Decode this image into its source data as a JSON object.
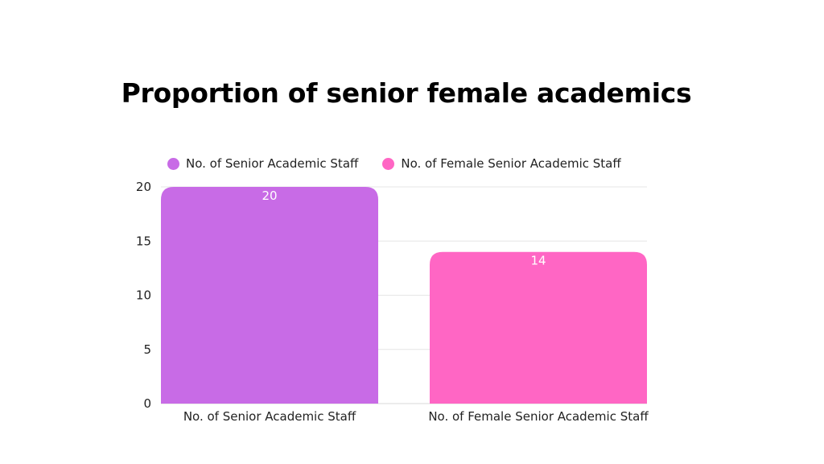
{
  "chart_data": {
    "type": "bar",
    "title": "Proportion of senior female academics",
    "categories": [
      "No. of Senior Academic Staff",
      "No. of Female Senior Academic Staff"
    ],
    "values": [
      20,
      14
    ],
    "data_labels": [
      "20",
      "14"
    ],
    "colors": [
      "#c86be6",
      "#ff66c4"
    ],
    "legend": [
      {
        "label": "No. of Senior Academic Staff",
        "color": "#c86be6"
      },
      {
        "label": "No. of Female Senior Academic Staff",
        "color": "#ff66c4"
      }
    ],
    "legend_position": "top",
    "ylim": [
      0,
      20
    ],
    "yticks": [
      0,
      5,
      10,
      15,
      20
    ],
    "ytick_labels": [
      "0",
      "5",
      "10",
      "15",
      "20"
    ],
    "xlabel": "",
    "ylabel": "",
    "grid": true
  }
}
